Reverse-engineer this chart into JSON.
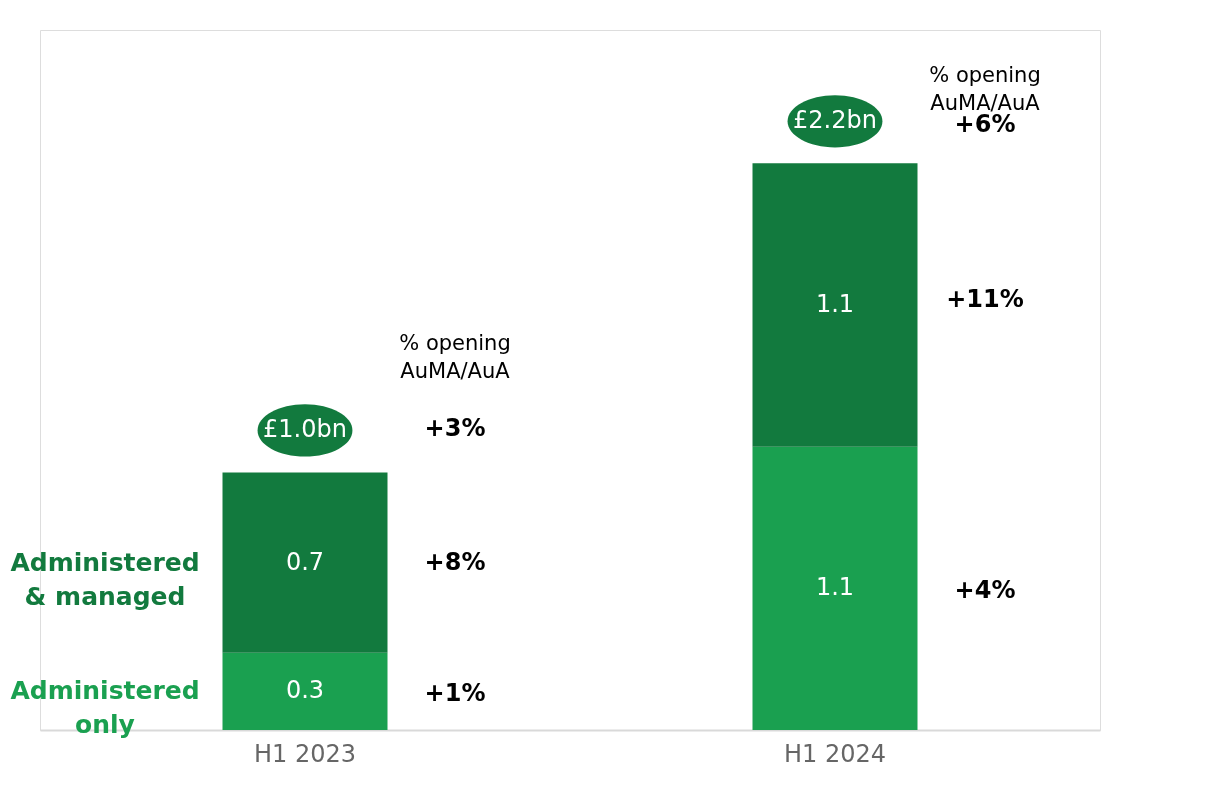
{
  "chart_data": {
    "type": "bar",
    "stacked": true,
    "categories": [
      "H1 2023",
      "H1 2024"
    ],
    "series": [
      {
        "name": "Administered only",
        "color": "#1aa050",
        "values": [
          0.3,
          1.1
        ]
      },
      {
        "name": "Administered & managed",
        "color": "#127a3e",
        "values": [
          0.7,
          1.1
        ]
      }
    ],
    "data_labels": true,
    "totals": [
      "£1.0bn",
      "£2.2bn"
    ],
    "grid": false,
    "legend": false,
    "tick_labels": "x",
    "annotations": [
      "% opening\nAuMA/AuA",
      "+3%",
      "+8%",
      "+1%",
      "% opening\nAuMA/AuA",
      "+6%",
      "+11%",
      "+4%"
    ]
  }
}
